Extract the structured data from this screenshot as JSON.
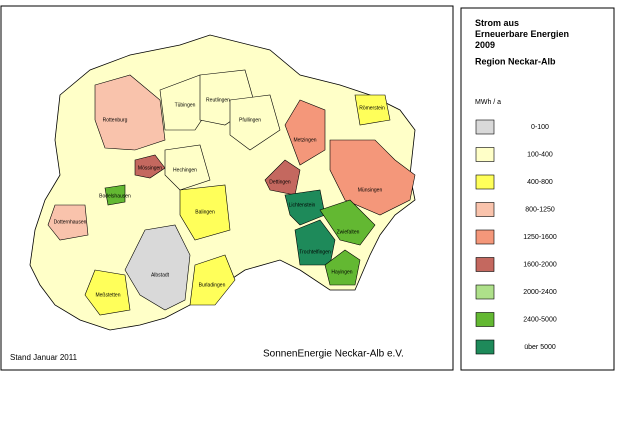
{
  "map": {
    "title": "Strom aus Erneuerbare Energien 2009",
    "subtitle": "Region Neckar-Alb",
    "unit": "MWh / a",
    "classes": [
      {
        "label": "0-100",
        "color": "#d9d9d9"
      },
      {
        "label": "100-400",
        "color": "#ffffc8"
      },
      {
        "label": "400-800",
        "color": "#ffff5a"
      },
      {
        "label": "800-1250",
        "color": "#f9c3ac"
      },
      {
        "label": "1250-1600",
        "color": "#f4977a"
      },
      {
        "label": "1600-2000",
        "color": "#c4685f"
      },
      {
        "label": "2000-2400",
        "color": "#aee08a"
      },
      {
        "label": "2400-5000",
        "color": "#63b832"
      },
      {
        "label": "über 5000",
        "color": "#1e8a5a"
      }
    ],
    "regions": [
      {
        "name": "Rottenburg",
        "class": 3
      },
      {
        "name": "Tübingen",
        "class": 1
      },
      {
        "name": "Reutlingen",
        "class": 1
      },
      {
        "name": "Metzingen",
        "class": 4
      },
      {
        "name": "Münsingen",
        "class": 4
      },
      {
        "name": "Dettingen",
        "class": 5
      },
      {
        "name": "Lichtenstein",
        "class": 8
      },
      {
        "name": "Trochtelfingen",
        "class": 8
      },
      {
        "name": "Zwiefalten",
        "class": 7
      },
      {
        "name": "Hayingen",
        "class": 7
      },
      {
        "name": "Albstadt",
        "class": 0
      },
      {
        "name": "Mössingen",
        "class": 5
      },
      {
        "name": "Hechingen",
        "class": 1
      },
      {
        "name": "Balingen",
        "class": 2
      },
      {
        "name": "Burladingen",
        "class": 2
      },
      {
        "name": "Pfullingen",
        "class": 1
      },
      {
        "name": "Meßstetten",
        "class": 2
      },
      {
        "name": "Bodelshausen",
        "class": 7
      },
      {
        "name": "Dotternhausen",
        "class": 3
      },
      {
        "name": "Römerstein",
        "class": 2
      }
    ],
    "stand": "Stand Januar 2011",
    "credit": "SonnenEnergie Neckar-Alb e.V."
  }
}
